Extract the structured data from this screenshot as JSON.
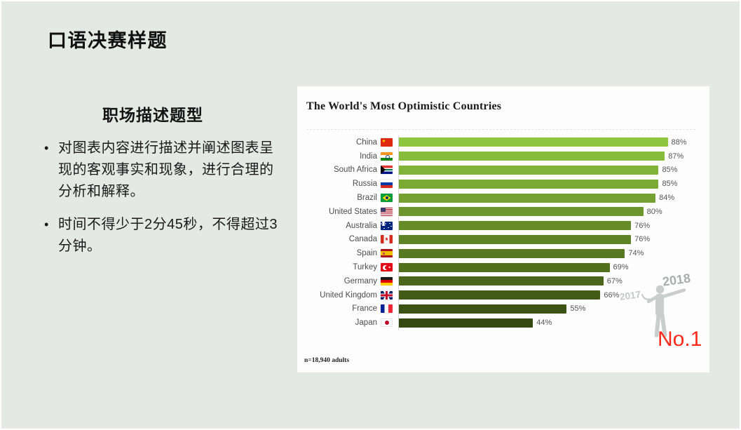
{
  "slide": {
    "title": "口语决赛样题",
    "section_heading": "职场描述题型",
    "bullets": [
      "对图表内容进行描述并阐述图表呈现的客观事实和现象，进行合理的分析和解释。",
      "时间不得少于2分45秒，不得超过3分钟。"
    ]
  },
  "annotations": {
    "year_2018": "2018",
    "year_2017": "2017",
    "rank_badge": "No.1"
  },
  "chart_data": {
    "type": "bar",
    "orientation": "horizontal",
    "title": "The World's Most Optimistic Countries",
    "note": "n=18,940 adults",
    "categories": [
      "China",
      "India",
      "South Africa",
      "Russia",
      "Brazil",
      "United States",
      "Australia",
      "Canada",
      "Spain",
      "Turkey",
      "Germany",
      "United Kingdom",
      "France",
      "Japan"
    ],
    "values": [
      88,
      87,
      85,
      85,
      84,
      80,
      76,
      76,
      74,
      69,
      67,
      66,
      55,
      44
    ],
    "value_labels": [
      "88%",
      "87%",
      "85%",
      "85%",
      "84%",
      "80%",
      "76%",
      "76%",
      "74%",
      "69%",
      "67%",
      "66%",
      "55%",
      "44%"
    ],
    "flags": [
      "china",
      "india",
      "south-africa",
      "russia",
      "brazil",
      "united-states",
      "australia",
      "canada",
      "spain",
      "turkey",
      "germany",
      "united-kingdom",
      "france",
      "japan"
    ],
    "bar_colors": [
      "#8ec63f",
      "#88bc3b",
      "#81b338",
      "#7aa934",
      "#73a031",
      "#6c962d",
      "#658c29",
      "#5e8326",
      "#577922",
      "#50701e",
      "#49661b",
      "#425c17",
      "#3b5314",
      "#344a10"
    ],
    "xlim": [
      0,
      100
    ],
    "legend": "none",
    "grid": "off"
  },
  "colors": {
    "background": "#e4e9e6",
    "card": "#fdfdfd",
    "accent_red": "#fb291a",
    "bar_gradient_top": "#8ec63f",
    "bar_gradient_bottom": "#344a10"
  }
}
